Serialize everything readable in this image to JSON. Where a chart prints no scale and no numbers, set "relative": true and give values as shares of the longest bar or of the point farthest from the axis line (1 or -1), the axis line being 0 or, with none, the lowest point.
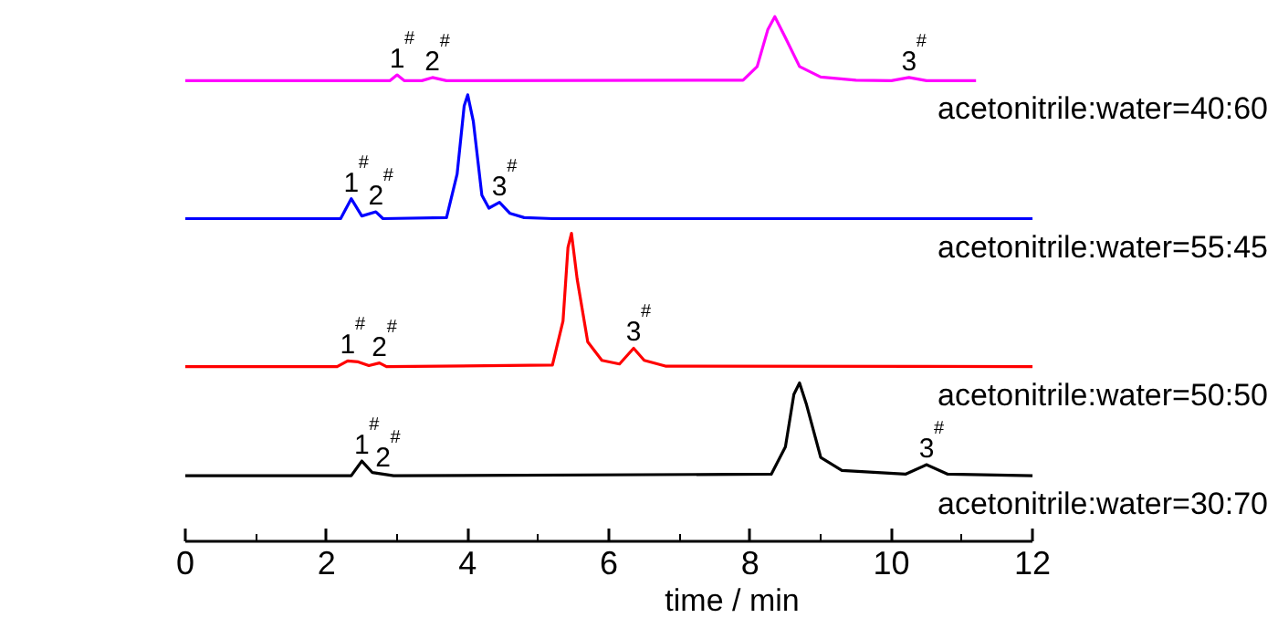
{
  "chart_data": {
    "type": "line",
    "relative": true,
    "xlabel": "time / min",
    "xlim": [
      0,
      12
    ],
    "xticks": [
      0,
      {
        "value": 1,
        "label": null
      },
      2,
      {
        "value": 3,
        "label": null
      },
      4,
      {
        "value": 5,
        "label": null
      },
      6,
      {
        "value": 7,
        "label": null
      },
      8,
      {
        "value": 9,
        "label": null
      },
      10,
      {
        "value": 11,
        "label": null
      },
      12
    ],
    "grid": false,
    "line_style": "solid",
    "marker": "none",
    "series": [
      {
        "name": "acetonitrile:water=40:60",
        "color": "#ff00ff",
        "x": [
          0,
          2.9,
          3.0,
          3.1,
          3.35,
          3.5,
          3.7,
          7.9,
          8.1,
          8.25,
          8.35,
          8.5,
          8.7,
          9.0,
          9.5,
          10.0,
          10.25,
          10.5,
          11.2
        ],
        "values": [
          0.878,
          0.878,
          0.889,
          0.878,
          0.878,
          0.884,
          0.878,
          0.879,
          0.905,
          0.975,
          1.0,
          0.96,
          0.905,
          0.885,
          0.879,
          0.878,
          0.884,
          0.878,
          0.878
        ]
      },
      {
        "name": "acetonitrile:water=55:45",
        "color": "#0000ff",
        "x": [
          0,
          2.2,
          2.35,
          2.5,
          2.7,
          2.8,
          3.7,
          3.85,
          3.95,
          4.0,
          4.08,
          4.2,
          4.3,
          4.45,
          4.6,
          4.8,
          5.2,
          12
        ],
        "values": [
          0.615,
          0.615,
          0.653,
          0.62,
          0.628,
          0.615,
          0.617,
          0.7,
          0.83,
          0.851,
          0.8,
          0.66,
          0.635,
          0.646,
          0.625,
          0.617,
          0.615,
          0.615
        ]
      },
      {
        "name": "acetonitrile:water=50:50",
        "color": "#ff0000",
        "x": [
          0,
          2.15,
          2.3,
          2.45,
          2.6,
          2.75,
          2.85,
          5.2,
          5.35,
          5.42,
          5.47,
          5.55,
          5.7,
          5.9,
          6.15,
          6.35,
          6.5,
          6.8,
          12
        ],
        "values": [
          0.333,
          0.333,
          0.344,
          0.342,
          0.335,
          0.34,
          0.333,
          0.336,
          0.42,
          0.56,
          0.587,
          0.5,
          0.38,
          0.345,
          0.338,
          0.368,
          0.345,
          0.334,
          0.333
        ]
      },
      {
        "name": "acetonitrile:water=30:70",
        "color": "#000000",
        "x": [
          0,
          2.35,
          2.5,
          2.65,
          2.8,
          2.95,
          8.3,
          8.5,
          8.62,
          8.7,
          8.8,
          9.0,
          9.3,
          10.2,
          10.5,
          10.8,
          12
        ],
        "values": [
          0.125,
          0.125,
          0.153,
          0.131,
          0.128,
          0.125,
          0.128,
          0.18,
          0.28,
          0.302,
          0.26,
          0.16,
          0.135,
          0.128,
          0.146,
          0.128,
          0.125
        ]
      }
    ],
    "annotations": [
      {
        "text": "1$^{#}$",
        "x": 3.0,
        "y": 0.889
      },
      {
        "text": "2$^{#}$",
        "x": 3.5,
        "y": 0.884
      },
      {
        "text": "3$^{#}$",
        "x": 10.25,
        "y": 0.884
      },
      {
        "text": "1$^{#}$",
        "x": 2.35,
        "y": 0.653
      },
      {
        "text": "2$^{#}$",
        "x": 2.7,
        "y": 0.628
      },
      {
        "text": "3$^{#}$",
        "x": 4.45,
        "y": 0.646
      },
      {
        "text": "1$^{#}$",
        "x": 2.3,
        "y": 0.344
      },
      {
        "text": "2$^{#}$",
        "x": 2.75,
        "y": 0.34
      },
      {
        "text": "3$^{#}$",
        "x": 6.35,
        "y": 0.368
      },
      {
        "text": "1$^{#}$",
        "x": 2.5,
        "y": 0.153
      },
      {
        "text": "2$^{#}$",
        "x": 2.8,
        "y": 0.128
      },
      {
        "text": "3$^{#}$",
        "x": 10.5,
        "y": 0.146
      }
    ]
  }
}
